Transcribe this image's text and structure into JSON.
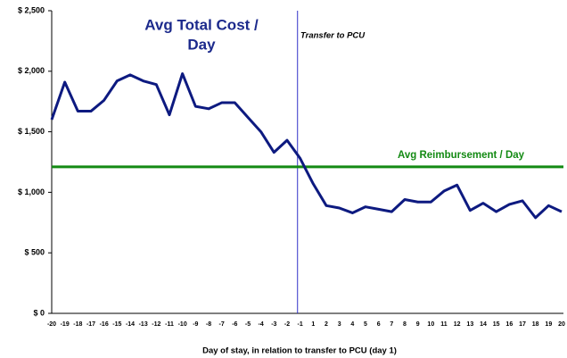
{
  "chart_data": {
    "type": "line",
    "title": [
      "Avg Total Cost /",
      "Day"
    ],
    "x_label": "Day of stay, in relation to transfer to PCU (day 1)",
    "categories": [
      "-20",
      "-19",
      "-18",
      "-17",
      "-16",
      "-15",
      "-14",
      "-13",
      "-12",
      "-11",
      "-10",
      "-9",
      "-8",
      "-7",
      "-6",
      "-5",
      "-4",
      "-3",
      "-2",
      "-1",
      "1",
      "2",
      "3",
      "4",
      "5",
      "6",
      "7",
      "8",
      "9",
      "10",
      "11",
      "12",
      "13",
      "14",
      "15",
      "16",
      "17",
      "18",
      "19",
      "20"
    ],
    "series": [
      {
        "color": "#0d1a80",
        "values": [
          1600,
          1910,
          1670,
          1670,
          1760,
          1920,
          1970,
          1920,
          1890,
          1640,
          1980,
          1710,
          1690,
          1740,
          1740,
          1620,
          1500,
          1330,
          1430,
          1280,
          1070,
          890,
          870,
          830,
          880,
          860,
          840,
          940,
          920,
          920,
          1010,
          1060,
          850,
          910,
          840,
          900,
          930,
          790,
          890,
          840
        ]
      }
    ],
    "reference_line": {
      "value": 1210,
      "label": "Avg Reimbursement / Day",
      "color": "#138a13"
    },
    "annotation": "Transfer to PCU",
    "ylim": [
      0,
      2500
    ],
    "yticks": [
      {
        "value": 0,
        "label": "$ 0"
      },
      {
        "value": 500,
        "label": "$ 500"
      },
      {
        "value": 1000,
        "label": "$ 1,000"
      },
      {
        "value": 1500,
        "label": "$ 1,500"
      },
      {
        "value": 2000,
        "label": "$ 2,000"
      },
      {
        "value": 2500,
        "label": "$ 2,500"
      }
    ]
  }
}
